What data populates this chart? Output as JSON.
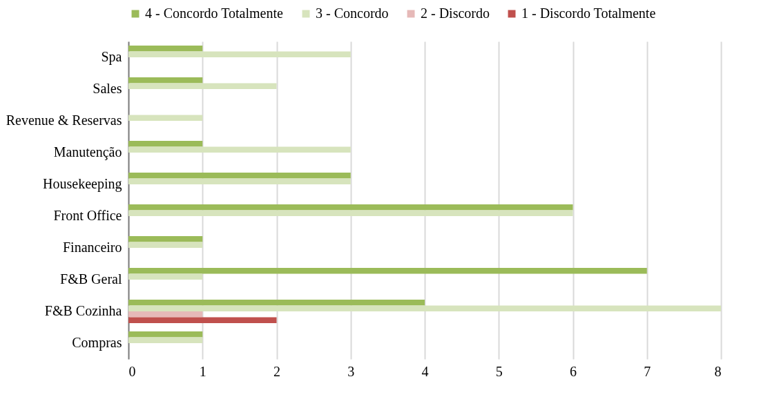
{
  "chart_data": {
    "type": "bar",
    "orientation": "horizontal",
    "categories": [
      "Spa",
      "Sales",
      "Revenue & Reservas",
      "Manutenção",
      "Housekeeping",
      "Front Office",
      "Financeiro",
      "F&B Geral",
      "F&B Cozinha",
      "Compras"
    ],
    "series": [
      {
        "name": "4 - Concordo Totalmente",
        "color": "#9bbb59",
        "values": [
          1,
          1,
          null,
          1,
          3,
          6,
          1,
          7,
          4,
          1
        ]
      },
      {
        "name": "3 - Concordo",
        "color": "#d7e4bd",
        "values": [
          3,
          2,
          1,
          3,
          3,
          6,
          1,
          1,
          8,
          1
        ]
      },
      {
        "name": "2 - Discordo",
        "color": "#e6b9b8",
        "values": [
          null,
          null,
          null,
          null,
          null,
          null,
          null,
          null,
          1,
          null
        ]
      },
      {
        "name": "1 - Discordo Totalmente",
        "color": "#c0504d",
        "values": [
          null,
          null,
          null,
          null,
          null,
          null,
          null,
          null,
          2,
          null
        ]
      }
    ],
    "xlim": [
      0,
      8
    ],
    "xticks": [
      0,
      1,
      2,
      3,
      4,
      5,
      6,
      7,
      8
    ],
    "grid": "x",
    "legend": "top"
  }
}
